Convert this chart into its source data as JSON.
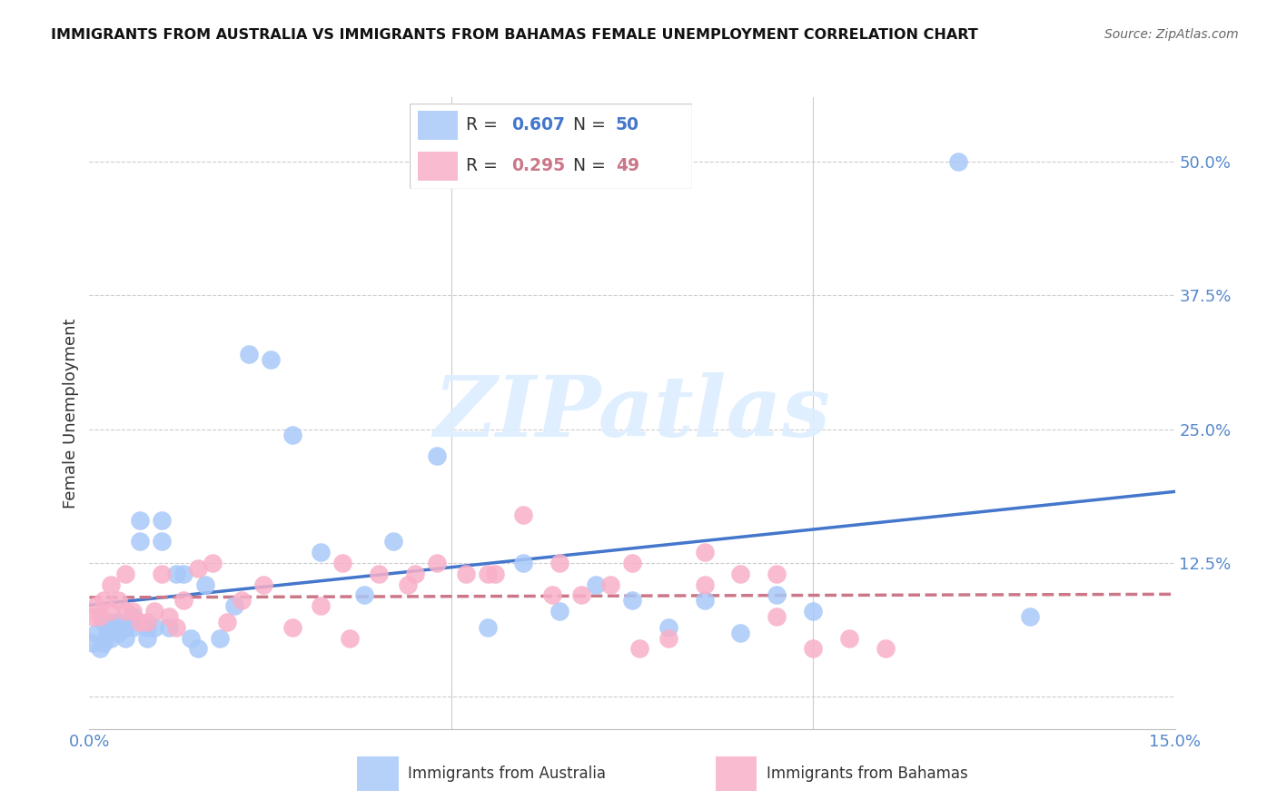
{
  "title": "IMMIGRANTS FROM AUSTRALIA VS IMMIGRANTS FROM BAHAMAS FEMALE UNEMPLOYMENT CORRELATION CHART",
  "source": "Source: ZipAtlas.com",
  "ylabel": "Female Unemployment",
  "y_ticks": [
    0.0,
    0.125,
    0.25,
    0.375,
    0.5
  ],
  "y_tick_labels": [
    "",
    "12.5%",
    "25.0%",
    "37.5%",
    "50.0%"
  ],
  "x_range": [
    0.0,
    0.15
  ],
  "y_range": [
    -0.03,
    0.56
  ],
  "australia_color": "#a8c8f8",
  "bahamas_color": "#f8b0c8",
  "australia_line_color": "#4477cc",
  "bahamas_line_color": "#cc7788",
  "watermark_text": "ZIPatlas",
  "watermark_color": "#ddeeff",
  "australia_x": [
    0.0005,
    0.001,
    0.0015,
    0.002,
    0.002,
    0.0025,
    0.003,
    0.003,
    0.003,
    0.004,
    0.004,
    0.005,
    0.005,
    0.005,
    0.006,
    0.006,
    0.007,
    0.007,
    0.008,
    0.008,
    0.009,
    0.01,
    0.01,
    0.011,
    0.012,
    0.013,
    0.014,
    0.015,
    0.016,
    0.018,
    0.02,
    0.022,
    0.025,
    0.028,
    0.032,
    0.038,
    0.042,
    0.048,
    0.055,
    0.06,
    0.065,
    0.07,
    0.075,
    0.08,
    0.085,
    0.09,
    0.095,
    0.1,
    0.12,
    0.13
  ],
  "australia_y": [
    0.05,
    0.06,
    0.045,
    0.05,
    0.07,
    0.06,
    0.055,
    0.065,
    0.07,
    0.06,
    0.07,
    0.055,
    0.065,
    0.07,
    0.065,
    0.075,
    0.165,
    0.145,
    0.065,
    0.055,
    0.065,
    0.145,
    0.165,
    0.065,
    0.115,
    0.115,
    0.055,
    0.045,
    0.105,
    0.055,
    0.085,
    0.32,
    0.315,
    0.245,
    0.135,
    0.095,
    0.145,
    0.225,
    0.065,
    0.125,
    0.08,
    0.105,
    0.09,
    0.065,
    0.09,
    0.06,
    0.095,
    0.08,
    0.5,
    0.075
  ],
  "bahamas_x": [
    0.0005,
    0.001,
    0.0015,
    0.002,
    0.003,
    0.003,
    0.004,
    0.005,
    0.005,
    0.006,
    0.007,
    0.008,
    0.009,
    0.01,
    0.011,
    0.012,
    0.013,
    0.015,
    0.017,
    0.019,
    0.021,
    0.024,
    0.028,
    0.032,
    0.036,
    0.04,
    0.044,
    0.048,
    0.052,
    0.056,
    0.06,
    0.064,
    0.068,
    0.072,
    0.076,
    0.08,
    0.085,
    0.09,
    0.095,
    0.1,
    0.105,
    0.11,
    0.035,
    0.045,
    0.055,
    0.065,
    0.075,
    0.085,
    0.095
  ],
  "bahamas_y": [
    0.075,
    0.085,
    0.075,
    0.09,
    0.105,
    0.08,
    0.09,
    0.115,
    0.08,
    0.08,
    0.07,
    0.07,
    0.08,
    0.115,
    0.075,
    0.065,
    0.09,
    0.12,
    0.125,
    0.07,
    0.09,
    0.105,
    0.065,
    0.085,
    0.055,
    0.115,
    0.105,
    0.125,
    0.115,
    0.115,
    0.17,
    0.095,
    0.095,
    0.105,
    0.045,
    0.055,
    0.105,
    0.115,
    0.075,
    0.045,
    0.055,
    0.045,
    0.125,
    0.115,
    0.115,
    0.125,
    0.125,
    0.135,
    0.115
  ]
}
